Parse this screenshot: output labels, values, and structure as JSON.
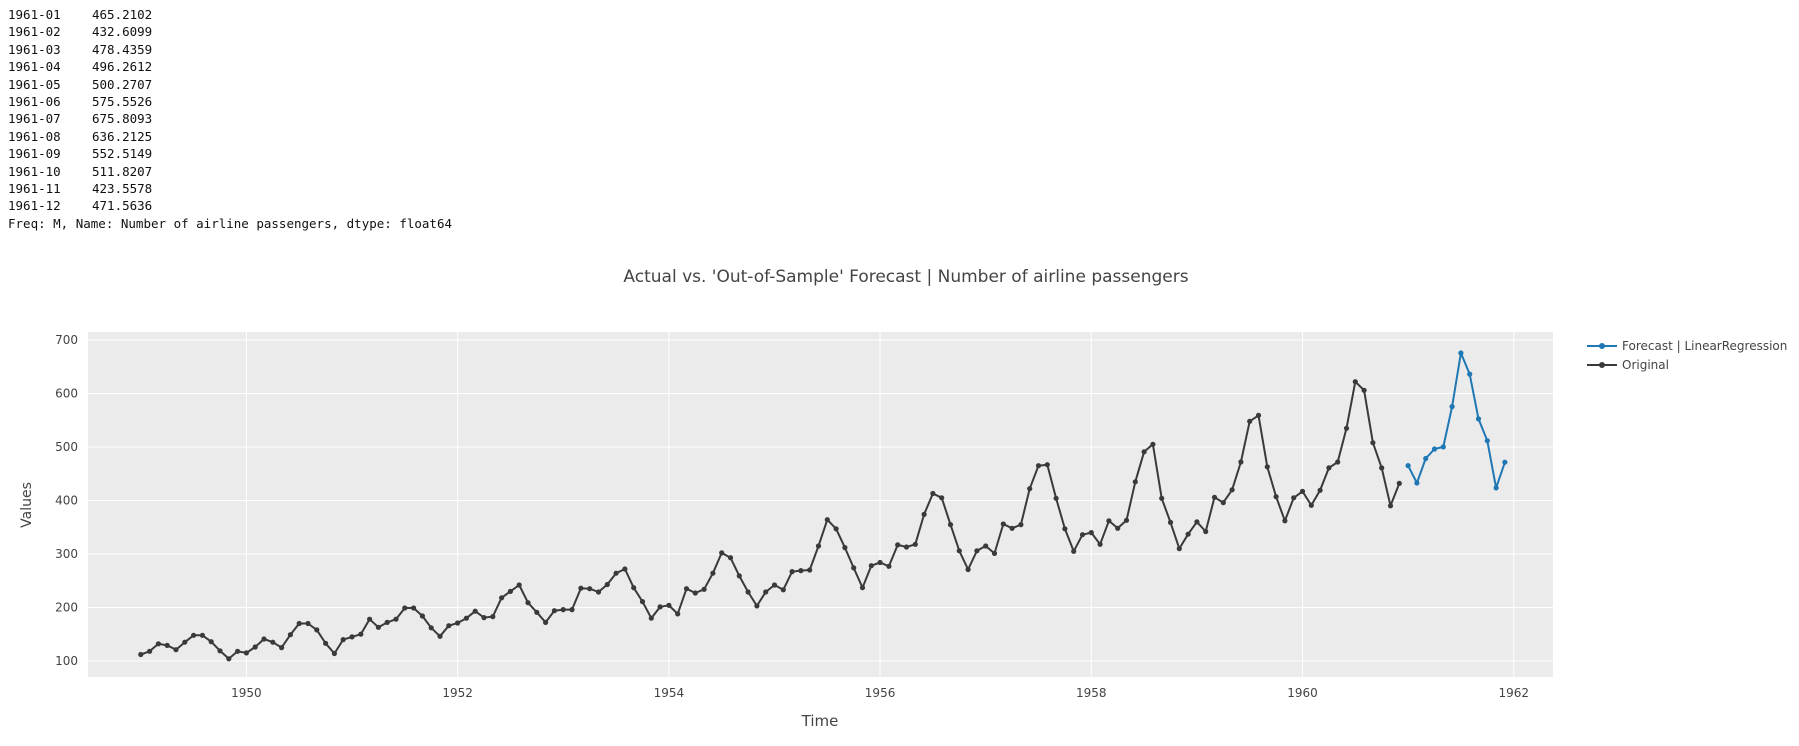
{
  "series_printout": {
    "rows": [
      {
        "date": "1961-01",
        "value": "465.2102"
      },
      {
        "date": "1961-02",
        "value": "432.6099"
      },
      {
        "date": "1961-03",
        "value": "478.4359"
      },
      {
        "date": "1961-04",
        "value": "496.2612"
      },
      {
        "date": "1961-05",
        "value": "500.2707"
      },
      {
        "date": "1961-06",
        "value": "575.5526"
      },
      {
        "date": "1961-07",
        "value": "675.8093"
      },
      {
        "date": "1961-08",
        "value": "636.2125"
      },
      {
        "date": "1961-09",
        "value": "552.5149"
      },
      {
        "date": "1961-10",
        "value": "511.8207"
      },
      {
        "date": "1961-11",
        "value": "423.5578"
      },
      {
        "date": "1961-12",
        "value": "471.5636"
      }
    ],
    "footer": "Freq: M, Name: Number of airline passengers, dtype: float64"
  },
  "chart_data": {
    "type": "line",
    "title": "Actual vs. 'Out-of-Sample' Forecast | Number of airline passengers",
    "xlabel": "Time",
    "ylabel": "Values",
    "xlim": [
      "1948-07-01",
      "1962-05-15"
    ],
    "ylim": [
      70,
      715
    ],
    "x_ticks": [
      "1950",
      "1952",
      "1954",
      "1956",
      "1958",
      "1960",
      "1962"
    ],
    "y_ticks": [
      100,
      200,
      300,
      400,
      500,
      600,
      700
    ],
    "grid": true,
    "legend_position": "top-right",
    "series": [
      {
        "name": "Forecast | LinearRegression",
        "color": "#1f77b4",
        "start": "1961-01",
        "values": [
          465.2102,
          432.6099,
          478.4359,
          496.2612,
          500.2707,
          575.5526,
          675.8093,
          636.2125,
          552.5149,
          511.8207,
          423.5578,
          471.5636
        ]
      },
      {
        "name": "Original",
        "color": "#3a3a3a",
        "start": "1949-01",
        "values": [
          112,
          118,
          132,
          129,
          121,
          135,
          148,
          148,
          136,
          119,
          104,
          118,
          115,
          126,
          141,
          135,
          125,
          149,
          170,
          170,
          158,
          133,
          114,
          140,
          145,
          150,
          178,
          163,
          172,
          178,
          199,
          199,
          184,
          162,
          146,
          166,
          171,
          180,
          193,
          181,
          183,
          218,
          230,
          242,
          209,
          191,
          172,
          194,
          196,
          196,
          236,
          235,
          229,
          243,
          264,
          272,
          237,
          211,
          180,
          201,
          204,
          188,
          235,
          227,
          234,
          264,
          302,
          293,
          259,
          229,
          203,
          229,
          242,
          233,
          267,
          269,
          270,
          315,
          364,
          347,
          312,
          274,
          237,
          278,
          284,
          277,
          317,
          313,
          318,
          374,
          413,
          405,
          355,
          306,
          271,
          306,
          315,
          301,
          356,
          348,
          355,
          422,
          465,
          467,
          404,
          347,
          305,
          336,
          340,
          318,
          362,
          348,
          363,
          435,
          491,
          505,
          404,
          359,
          310,
          337,
          360,
          342,
          406,
          396,
          420,
          472,
          548,
          559,
          463,
          407,
          362,
          405,
          417,
          391,
          419,
          461,
          472,
          535,
          622,
          606,
          508,
          461,
          390,
          432
        ]
      }
    ]
  }
}
